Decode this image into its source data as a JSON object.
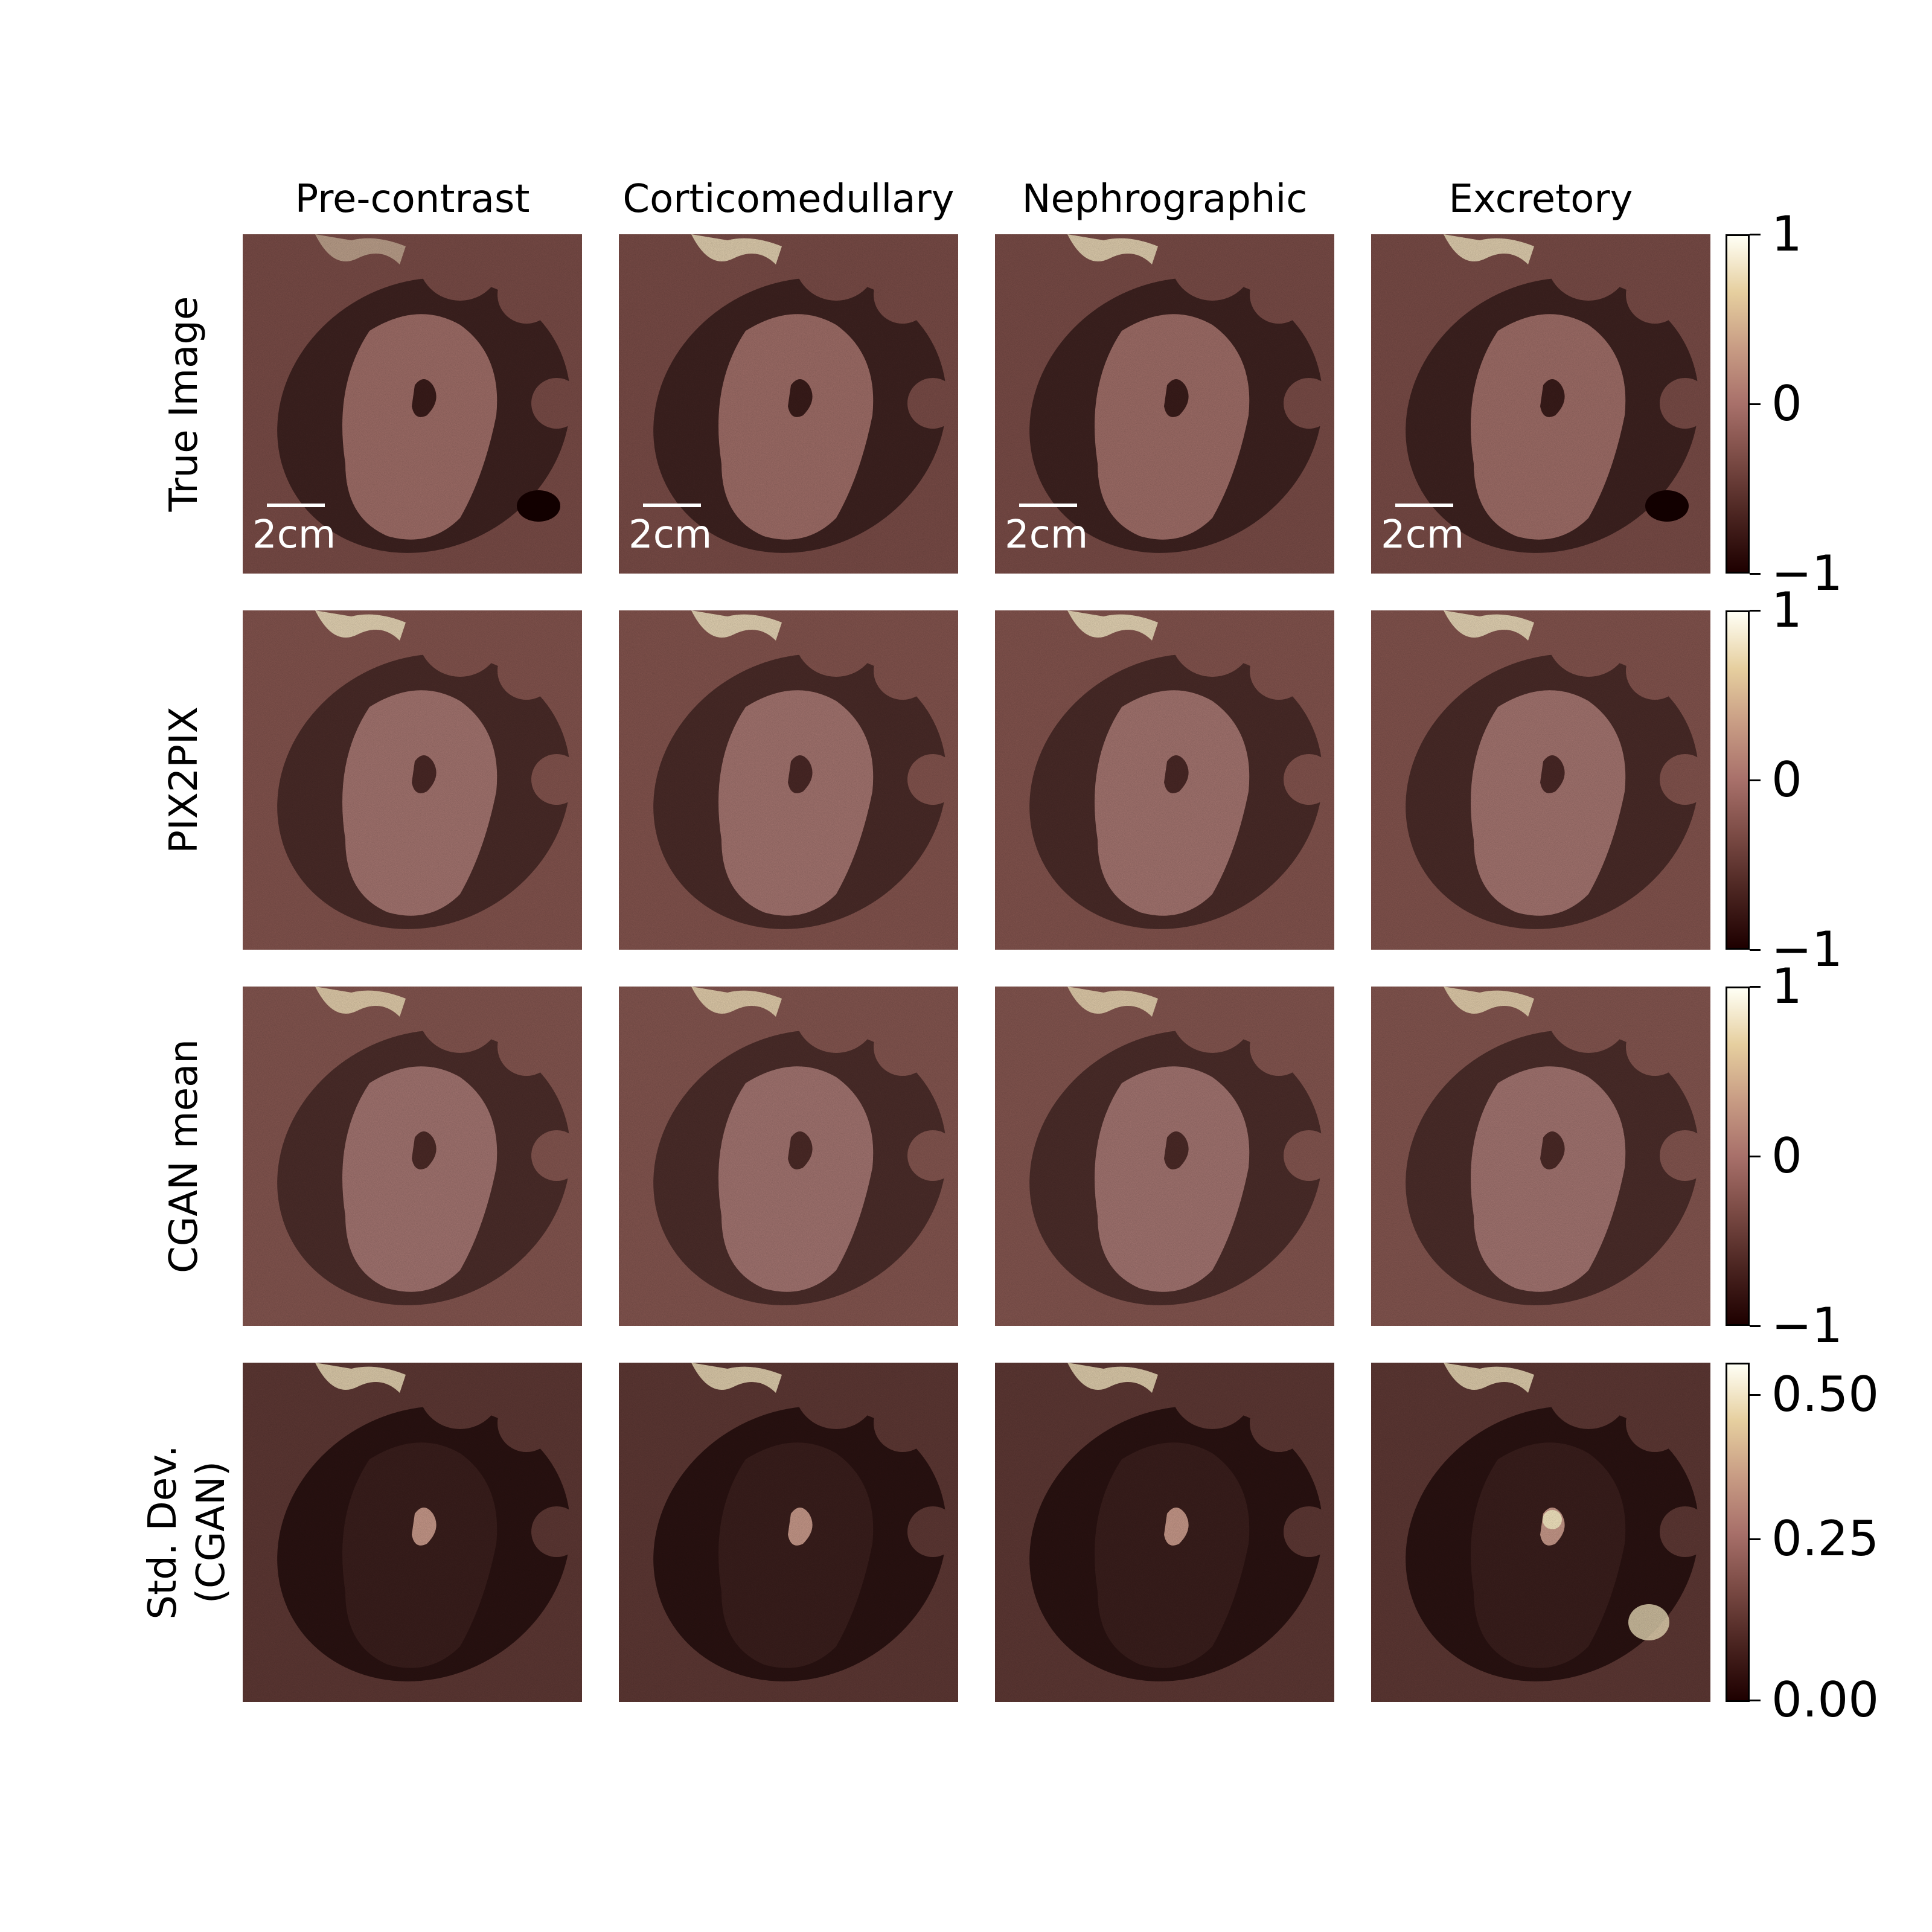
{
  "columns": [
    "Pre-contrast",
    "Corticomedullary",
    "Nephrographic",
    "Excretory"
  ],
  "rows": [
    {
      "label_lines": [
        "True Image"
      ]
    },
    {
      "label_lines": [
        "PIX2PIX"
      ]
    },
    {
      "label_lines": [
        "CGAN mean"
      ]
    },
    {
      "label_lines": [
        "Std. Dev.",
        "(CGAN)"
      ]
    }
  ],
  "scale_bar_label": "2cm",
  "colorbars": [
    {
      "ticks": [
        "1",
        "0",
        "−1"
      ]
    },
    {
      "ticks": [
        "1",
        "0",
        "−1"
      ]
    },
    {
      "ticks": [
        "1",
        "0",
        "−1"
      ]
    },
    {
      "ticks": [
        "0.50",
        "0.25",
        "0.00"
      ]
    }
  ],
  "colormap": [
    "#1e0000",
    "#4a2420",
    "#7a4a44",
    "#a8706a",
    "#c89c84",
    "#e6cf9f",
    "#fffff5"
  ]
}
